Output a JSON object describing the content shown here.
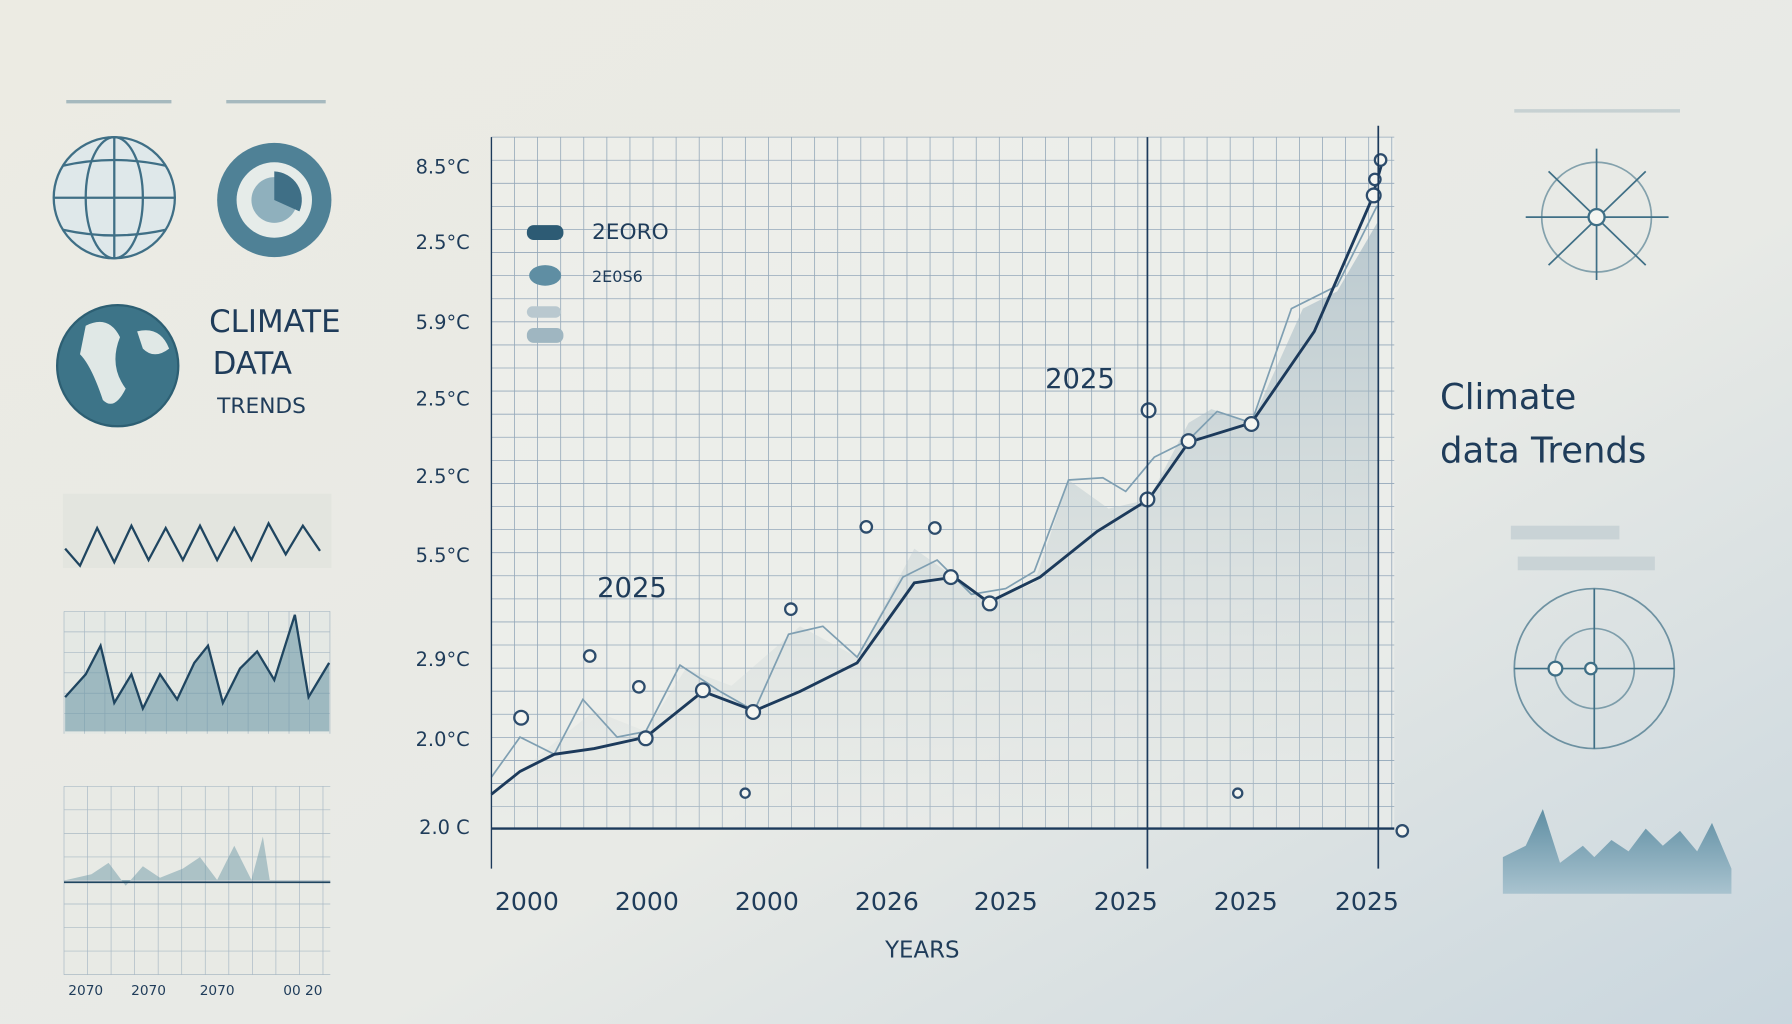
{
  "sidebar": {
    "logo_text": [
      "CLIMATE",
      "DATA",
      "TRENDS"
    ],
    "mini_chart_labels": [
      "2070",
      "2070",
      "2070",
      "00 20"
    ]
  },
  "main_chart": {
    "y_labels": [
      "8.5°C",
      "2.5°C",
      "5.9°C",
      "2.5°C",
      "2.5°C",
      "5.5°C",
      "2.9°C",
      "2.0°C",
      "2.0 C"
    ],
    "legend": [
      "2EORO",
      "2E0S6"
    ],
    "annotations": [
      "2025",
      "2025"
    ],
    "x_labels": [
      "2000",
      "2000",
      "2000",
      "2026",
      "2025",
      "2025",
      "2025",
      "2025"
    ],
    "x_axis_title": "YEARS"
  },
  "right_panel": {
    "title": [
      "Climate",
      "data Trends"
    ]
  }
}
